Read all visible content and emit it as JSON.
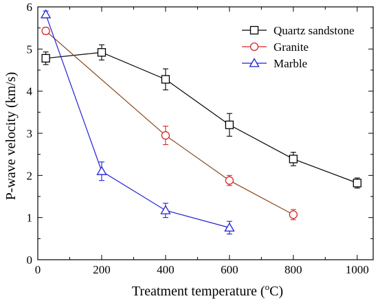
{
  "chart_data": {
    "type": "line",
    "xlabel": "Treatment temperature (",
    "xlabel_unit_sup": "o",
    "xlabel_unit": "C)",
    "ylabel": "P-wave velocity (km/s)",
    "xlim": [
      0,
      1050
    ],
    "ylim": [
      0,
      6
    ],
    "xticks": [
      0,
      200,
      400,
      600,
      800,
      1000
    ],
    "yticks": [
      0,
      1,
      2,
      3,
      4,
      5,
      6
    ],
    "grid": false,
    "legend_position": "top-right",
    "series": [
      {
        "name": "Quartz sandstone",
        "color": "#000000",
        "marker": "square",
        "x": [
          25,
          200,
          400,
          600,
          800,
          1000
        ],
        "y": [
          4.78,
          4.92,
          4.28,
          3.2,
          2.39,
          1.82
        ],
        "err": [
          0.15,
          0.18,
          0.25,
          0.27,
          0.16,
          0.12
        ]
      },
      {
        "name": "Granite",
        "color": "#d62728",
        "line_color": "#8b4513",
        "marker": "circle",
        "x": [
          25,
          400,
          600,
          800
        ],
        "y": [
          5.43,
          2.95,
          1.88,
          1.07
        ],
        "err": [
          0.08,
          0.22,
          0.12,
          0.12
        ]
      },
      {
        "name": "Marble",
        "color": "#1f1fd6",
        "marker": "triangle",
        "x": [
          25,
          200,
          400,
          600
        ],
        "y": [
          5.82,
          2.1,
          1.17,
          0.76
        ],
        "err": [
          0.08,
          0.22,
          0.17,
          0.15
        ]
      }
    ]
  }
}
